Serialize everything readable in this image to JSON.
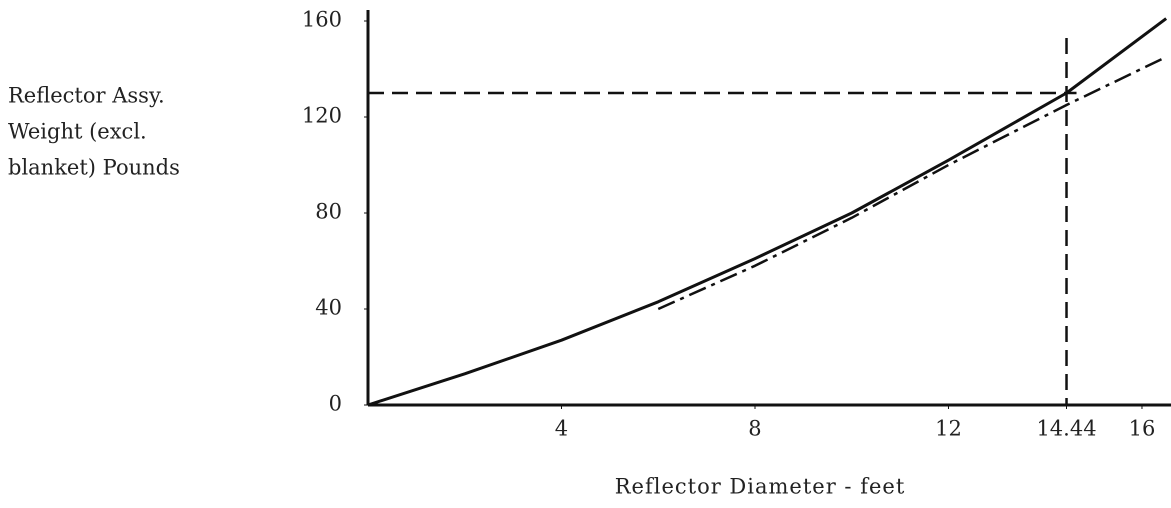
{
  "chart_data": {
    "type": "line",
    "ylabel": [
      "Reflector Assy.",
      "Weight (excl.",
      "blanket) Pounds"
    ],
    "xlabel": "Reflector Diameter - feet",
    "xlim": [
      0,
      16.6
    ],
    "ylim": [
      0,
      160
    ],
    "xticks": [
      4,
      8,
      12,
      14.44,
      16
    ],
    "yticks": [
      0,
      40,
      80,
      120,
      160
    ],
    "series": [
      {
        "color": "#111111",
        "dash": "solid",
        "x": [
          0,
          2,
          4,
          6,
          8,
          10,
          12,
          14.44,
          16.5
        ],
        "values": [
          0,
          13,
          27,
          43,
          61,
          80,
          102,
          130,
          161
        ]
      },
      {
        "color": "#111111",
        "dash": "dashdot",
        "x": [
          6,
          8,
          10,
          12,
          14.44,
          16.5
        ],
        "values": [
          40,
          58,
          78,
          100,
          125,
          145
        ]
      }
    ],
    "reference_x": 14.44,
    "reference_y": 130
  }
}
